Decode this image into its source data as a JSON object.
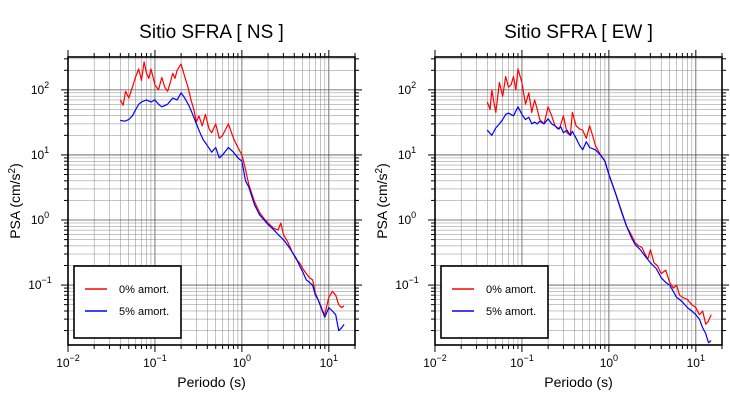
{
  "chart_data": [
    {
      "type": "line",
      "title": "Sitio SFRA [ NS ]",
      "xlabel": "Periodo (s)",
      "ylabel_base": "PSA (cm/s",
      "ylabel_sup": "2",
      "ylabel_close": ")",
      "xscale": "log",
      "yscale": "log",
      "xlim": [
        0.01,
        20
      ],
      "ylim": [
        0.012,
        320
      ],
      "grid": true,
      "legend_position": "bottom-left",
      "x_ticks": [
        {
          "value": 0.01,
          "base": "10",
          "exp": "−2"
        },
        {
          "value": 0.1,
          "base": "10",
          "exp": "−1"
        },
        {
          "value": 1,
          "base": "10",
          "exp": "0"
        },
        {
          "value": 10,
          "base": "10",
          "exp": "1"
        }
      ],
      "y_ticks": [
        {
          "value": 0.1,
          "base": "10",
          "exp": "−1"
        },
        {
          "value": 1,
          "base": "10",
          "exp": "0"
        },
        {
          "value": 10,
          "base": "10",
          "exp": "1"
        },
        {
          "value": 100,
          "base": "10",
          "exp": "2"
        }
      ],
      "series": [
        {
          "name": "0% amort.",
          "color": "#ff0000",
          "points": [
            [
              0.04,
              70
            ],
            [
              0.043,
              58
            ],
            [
              0.046,
              95
            ],
            [
              0.05,
              75
            ],
            [
              0.055,
              110
            ],
            [
              0.06,
              160
            ],
            [
              0.065,
              210
            ],
            [
              0.07,
              140
            ],
            [
              0.075,
              270
            ],
            [
              0.08,
              180
            ],
            [
              0.085,
              150
            ],
            [
              0.09,
              210
            ],
            [
              0.1,
              120
            ],
            [
              0.11,
              100
            ],
            [
              0.12,
              155
            ],
            [
              0.13,
              110
            ],
            [
              0.14,
              95
            ],
            [
              0.15,
              130
            ],
            [
              0.16,
              180
            ],
            [
              0.17,
              150
            ],
            [
              0.18,
              200
            ],
            [
              0.2,
              250
            ],
            [
              0.22,
              160
            ],
            [
              0.24,
              110
            ],
            [
              0.26,
              70
            ],
            [
              0.28,
              50
            ],
            [
              0.3,
              32
            ],
            [
              0.32,
              40
            ],
            [
              0.35,
              28
            ],
            [
              0.38,
              42
            ],
            [
              0.42,
              25
            ],
            [
              0.45,
              22
            ],
            [
              0.5,
              30
            ],
            [
              0.55,
              18
            ],
            [
              0.6,
              20
            ],
            [
              0.7,
              30
            ],
            [
              0.8,
              18
            ],
            [
              0.9,
              13
            ],
            [
              1.0,
              10
            ],
            [
              1.1,
              6
            ],
            [
              1.2,
              3.5
            ],
            [
              1.4,
              1.9
            ],
            [
              1.6,
              1.3
            ],
            [
              1.8,
              1.05
            ],
            [
              2.0,
              0.9
            ],
            [
              2.3,
              0.75
            ],
            [
              2.6,
              0.7
            ],
            [
              2.8,
              0.9
            ],
            [
              3.0,
              0.6
            ],
            [
              3.4,
              0.45
            ],
            [
              3.8,
              0.32
            ],
            [
              4.2,
              0.25
            ],
            [
              4.6,
              0.22
            ],
            [
              5.0,
              0.18
            ],
            [
              5.5,
              0.15
            ],
            [
              6.0,
              0.13
            ],
            [
              6.5,
              0.12
            ],
            [
              7.0,
              0.075
            ],
            [
              7.5,
              0.06
            ],
            [
              8.0,
              0.05
            ],
            [
              8.5,
              0.04
            ],
            [
              9.0,
              0.035
            ],
            [
              10,
              0.065
            ],
            [
              11,
              0.08
            ],
            [
              12,
              0.07
            ],
            [
              13,
              0.05
            ],
            [
              14,
              0.045
            ],
            [
              15,
              0.048
            ]
          ]
        },
        {
          "name": "5% amort.",
          "color": "#0000ff",
          "points": [
            [
              0.04,
              34
            ],
            [
              0.045,
              33
            ],
            [
              0.05,
              35
            ],
            [
              0.055,
              40
            ],
            [
              0.06,
              50
            ],
            [
              0.065,
              60
            ],
            [
              0.07,
              65
            ],
            [
              0.08,
              70
            ],
            [
              0.09,
              65
            ],
            [
              0.1,
              70
            ],
            [
              0.11,
              60
            ],
            [
              0.12,
              55
            ],
            [
              0.14,
              60
            ],
            [
              0.16,
              75
            ],
            [
              0.18,
              70
            ],
            [
              0.2,
              90
            ],
            [
              0.22,
              75
            ],
            [
              0.25,
              55
            ],
            [
              0.28,
              38
            ],
            [
              0.3,
              30
            ],
            [
              0.33,
              22
            ],
            [
              0.36,
              17
            ],
            [
              0.4,
              14
            ],
            [
              0.45,
              11
            ],
            [
              0.5,
              13
            ],
            [
              0.55,
              9
            ],
            [
              0.6,
              10
            ],
            [
              0.7,
              13
            ],
            [
              0.8,
              11
            ],
            [
              0.9,
              9
            ],
            [
              1.0,
              8
            ],
            [
              1.1,
              4
            ],
            [
              1.2,
              3.2
            ],
            [
              1.4,
              1.7
            ],
            [
              1.6,
              1.2
            ],
            [
              1.8,
              1.0
            ],
            [
              2.0,
              0.85
            ],
            [
              2.3,
              0.72
            ],
            [
              2.6,
              0.6
            ],
            [
              3.0,
              0.5
            ],
            [
              3.4,
              0.4
            ],
            [
              3.8,
              0.32
            ],
            [
              4.2,
              0.26
            ],
            [
              4.6,
              0.2
            ],
            [
              5.0,
              0.16
            ],
            [
              5.5,
              0.12
            ],
            [
              6.0,
              0.11
            ],
            [
              6.5,
              0.1
            ],
            [
              7.0,
              0.07
            ],
            [
              7.5,
              0.06
            ],
            [
              8.0,
              0.048
            ],
            [
              9.0,
              0.032
            ],
            [
              10,
              0.045
            ],
            [
              11,
              0.04
            ],
            [
              12,
              0.035
            ],
            [
              13,
              0.02
            ],
            [
              14,
              0.022
            ],
            [
              15,
              0.025
            ]
          ]
        }
      ]
    },
    {
      "type": "line",
      "title": "Sitio SFRA [ EW ]",
      "xlabel": "Periodo (s)",
      "ylabel_base": "PSA (cm/s",
      "ylabel_sup": "2",
      "ylabel_close": ")",
      "xscale": "log",
      "yscale": "log",
      "xlim": [
        0.01,
        20
      ],
      "ylim": [
        0.012,
        320
      ],
      "grid": true,
      "legend_position": "bottom-left",
      "x_ticks": [
        {
          "value": 0.01,
          "base": "10",
          "exp": "−2"
        },
        {
          "value": 0.1,
          "base": "10",
          "exp": "−1"
        },
        {
          "value": 1,
          "base": "10",
          "exp": "0"
        },
        {
          "value": 10,
          "base": "10",
          "exp": "1"
        }
      ],
      "y_ticks": [
        {
          "value": 0.1,
          "base": "10",
          "exp": "−1"
        },
        {
          "value": 1,
          "base": "10",
          "exp": "0"
        },
        {
          "value": 10,
          "base": "10",
          "exp": "1"
        },
        {
          "value": 100,
          "base": "10",
          "exp": "2"
        }
      ],
      "series": [
        {
          "name": "0% amort.",
          "color": "#ff0000",
          "points": [
            [
              0.04,
              65
            ],
            [
              0.043,
              50
            ],
            [
              0.045,
              100
            ],
            [
              0.048,
              60
            ],
            [
              0.05,
              45
            ],
            [
              0.055,
              130
            ],
            [
              0.06,
              80
            ],
            [
              0.065,
              160
            ],
            [
              0.07,
              110
            ],
            [
              0.075,
              120
            ],
            [
              0.08,
              160
            ],
            [
              0.085,
              100
            ],
            [
              0.09,
              210
            ],
            [
              0.1,
              130
            ],
            [
              0.11,
              60
            ],
            [
              0.12,
              90
            ],
            [
              0.13,
              45
            ],
            [
              0.14,
              70
            ],
            [
              0.15,
              50
            ],
            [
              0.16,
              35
            ],
            [
              0.18,
              30
            ],
            [
              0.2,
              55
            ],
            [
              0.22,
              40
            ],
            [
              0.24,
              28
            ],
            [
              0.27,
              25
            ],
            [
              0.3,
              40
            ],
            [
              0.33,
              22
            ],
            [
              0.36,
              20
            ],
            [
              0.38,
              45
            ],
            [
              0.42,
              28
            ],
            [
              0.46,
              25
            ],
            [
              0.5,
              24
            ],
            [
              0.55,
              18
            ],
            [
              0.6,
              28
            ],
            [
              0.65,
              20
            ],
            [
              0.7,
              14
            ],
            [
              0.8,
              10
            ],
            [
              0.9,
              8
            ],
            [
              1.0,
              5
            ],
            [
              1.2,
              2.5
            ],
            [
              1.4,
              1.3
            ],
            [
              1.6,
              0.8
            ],
            [
              1.8,
              0.6
            ],
            [
              2.0,
              0.45
            ],
            [
              2.2,
              0.4
            ],
            [
              2.4,
              0.38
            ],
            [
              2.6,
              0.3
            ],
            [
              2.8,
              0.25
            ],
            [
              3.0,
              0.35
            ],
            [
              3.3,
              0.22
            ],
            [
              3.6,
              0.2
            ],
            [
              4.0,
              0.15
            ],
            [
              4.5,
              0.17
            ],
            [
              5.0,
              0.11
            ],
            [
              5.5,
              0.09
            ],
            [
              6.0,
              0.1
            ],
            [
              6.5,
              0.07
            ],
            [
              7.0,
              0.065
            ],
            [
              8.0,
              0.06
            ],
            [
              9.0,
              0.05
            ],
            [
              10,
              0.045
            ],
            [
              11,
              0.035
            ],
            [
              12,
              0.04
            ],
            [
              13,
              0.025
            ],
            [
              14,
              0.028
            ],
            [
              15,
              0.035
            ]
          ]
        },
        {
          "name": "5% amort.",
          "color": "#0000ff",
          "points": [
            [
              0.04,
              24
            ],
            [
              0.045,
              20
            ],
            [
              0.05,
              26
            ],
            [
              0.055,
              30
            ],
            [
              0.06,
              35
            ],
            [
              0.065,
              42
            ],
            [
              0.07,
              44
            ],
            [
              0.08,
              40
            ],
            [
              0.09,
              55
            ],
            [
              0.1,
              42
            ],
            [
              0.11,
              35
            ],
            [
              0.12,
              38
            ],
            [
              0.13,
              30
            ],
            [
              0.14,
              32
            ],
            [
              0.15,
              30
            ],
            [
              0.16,
              33
            ],
            [
              0.18,
              30
            ],
            [
              0.2,
              36
            ],
            [
              0.22,
              30
            ],
            [
              0.24,
              28
            ],
            [
              0.26,
              25
            ],
            [
              0.28,
              27
            ],
            [
              0.3,
              22
            ],
            [
              0.33,
              24
            ],
            [
              0.36,
              20
            ],
            [
              0.38,
              23
            ],
            [
              0.42,
              18
            ],
            [
              0.46,
              14
            ],
            [
              0.5,
              12
            ],
            [
              0.55,
              16
            ],
            [
              0.6,
              13
            ],
            [
              0.7,
              12
            ],
            [
              0.8,
              10
            ],
            [
              0.9,
              8
            ],
            [
              1.0,
              5
            ],
            [
              1.2,
              2.5
            ],
            [
              1.4,
              1.35
            ],
            [
              1.6,
              0.8
            ],
            [
              1.8,
              0.55
            ],
            [
              2.0,
              0.42
            ],
            [
              2.3,
              0.35
            ],
            [
              2.6,
              0.28
            ],
            [
              3.0,
              0.22
            ],
            [
              3.5,
              0.18
            ],
            [
              4.0,
              0.13
            ],
            [
              4.5,
              0.11
            ],
            [
              5.0,
              0.1
            ],
            [
              5.5,
              0.08
            ],
            [
              6.0,
              0.065
            ],
            [
              6.5,
              0.06
            ],
            [
              7.0,
              0.055
            ],
            [
              8.0,
              0.045
            ],
            [
              9.0,
              0.04
            ],
            [
              10,
              0.035
            ],
            [
              11,
              0.03
            ],
            [
              12,
              0.022
            ],
            [
              13,
              0.018
            ],
            [
              14,
              0.013
            ],
            [
              15,
              0.014
            ]
          ]
        }
      ]
    }
  ]
}
